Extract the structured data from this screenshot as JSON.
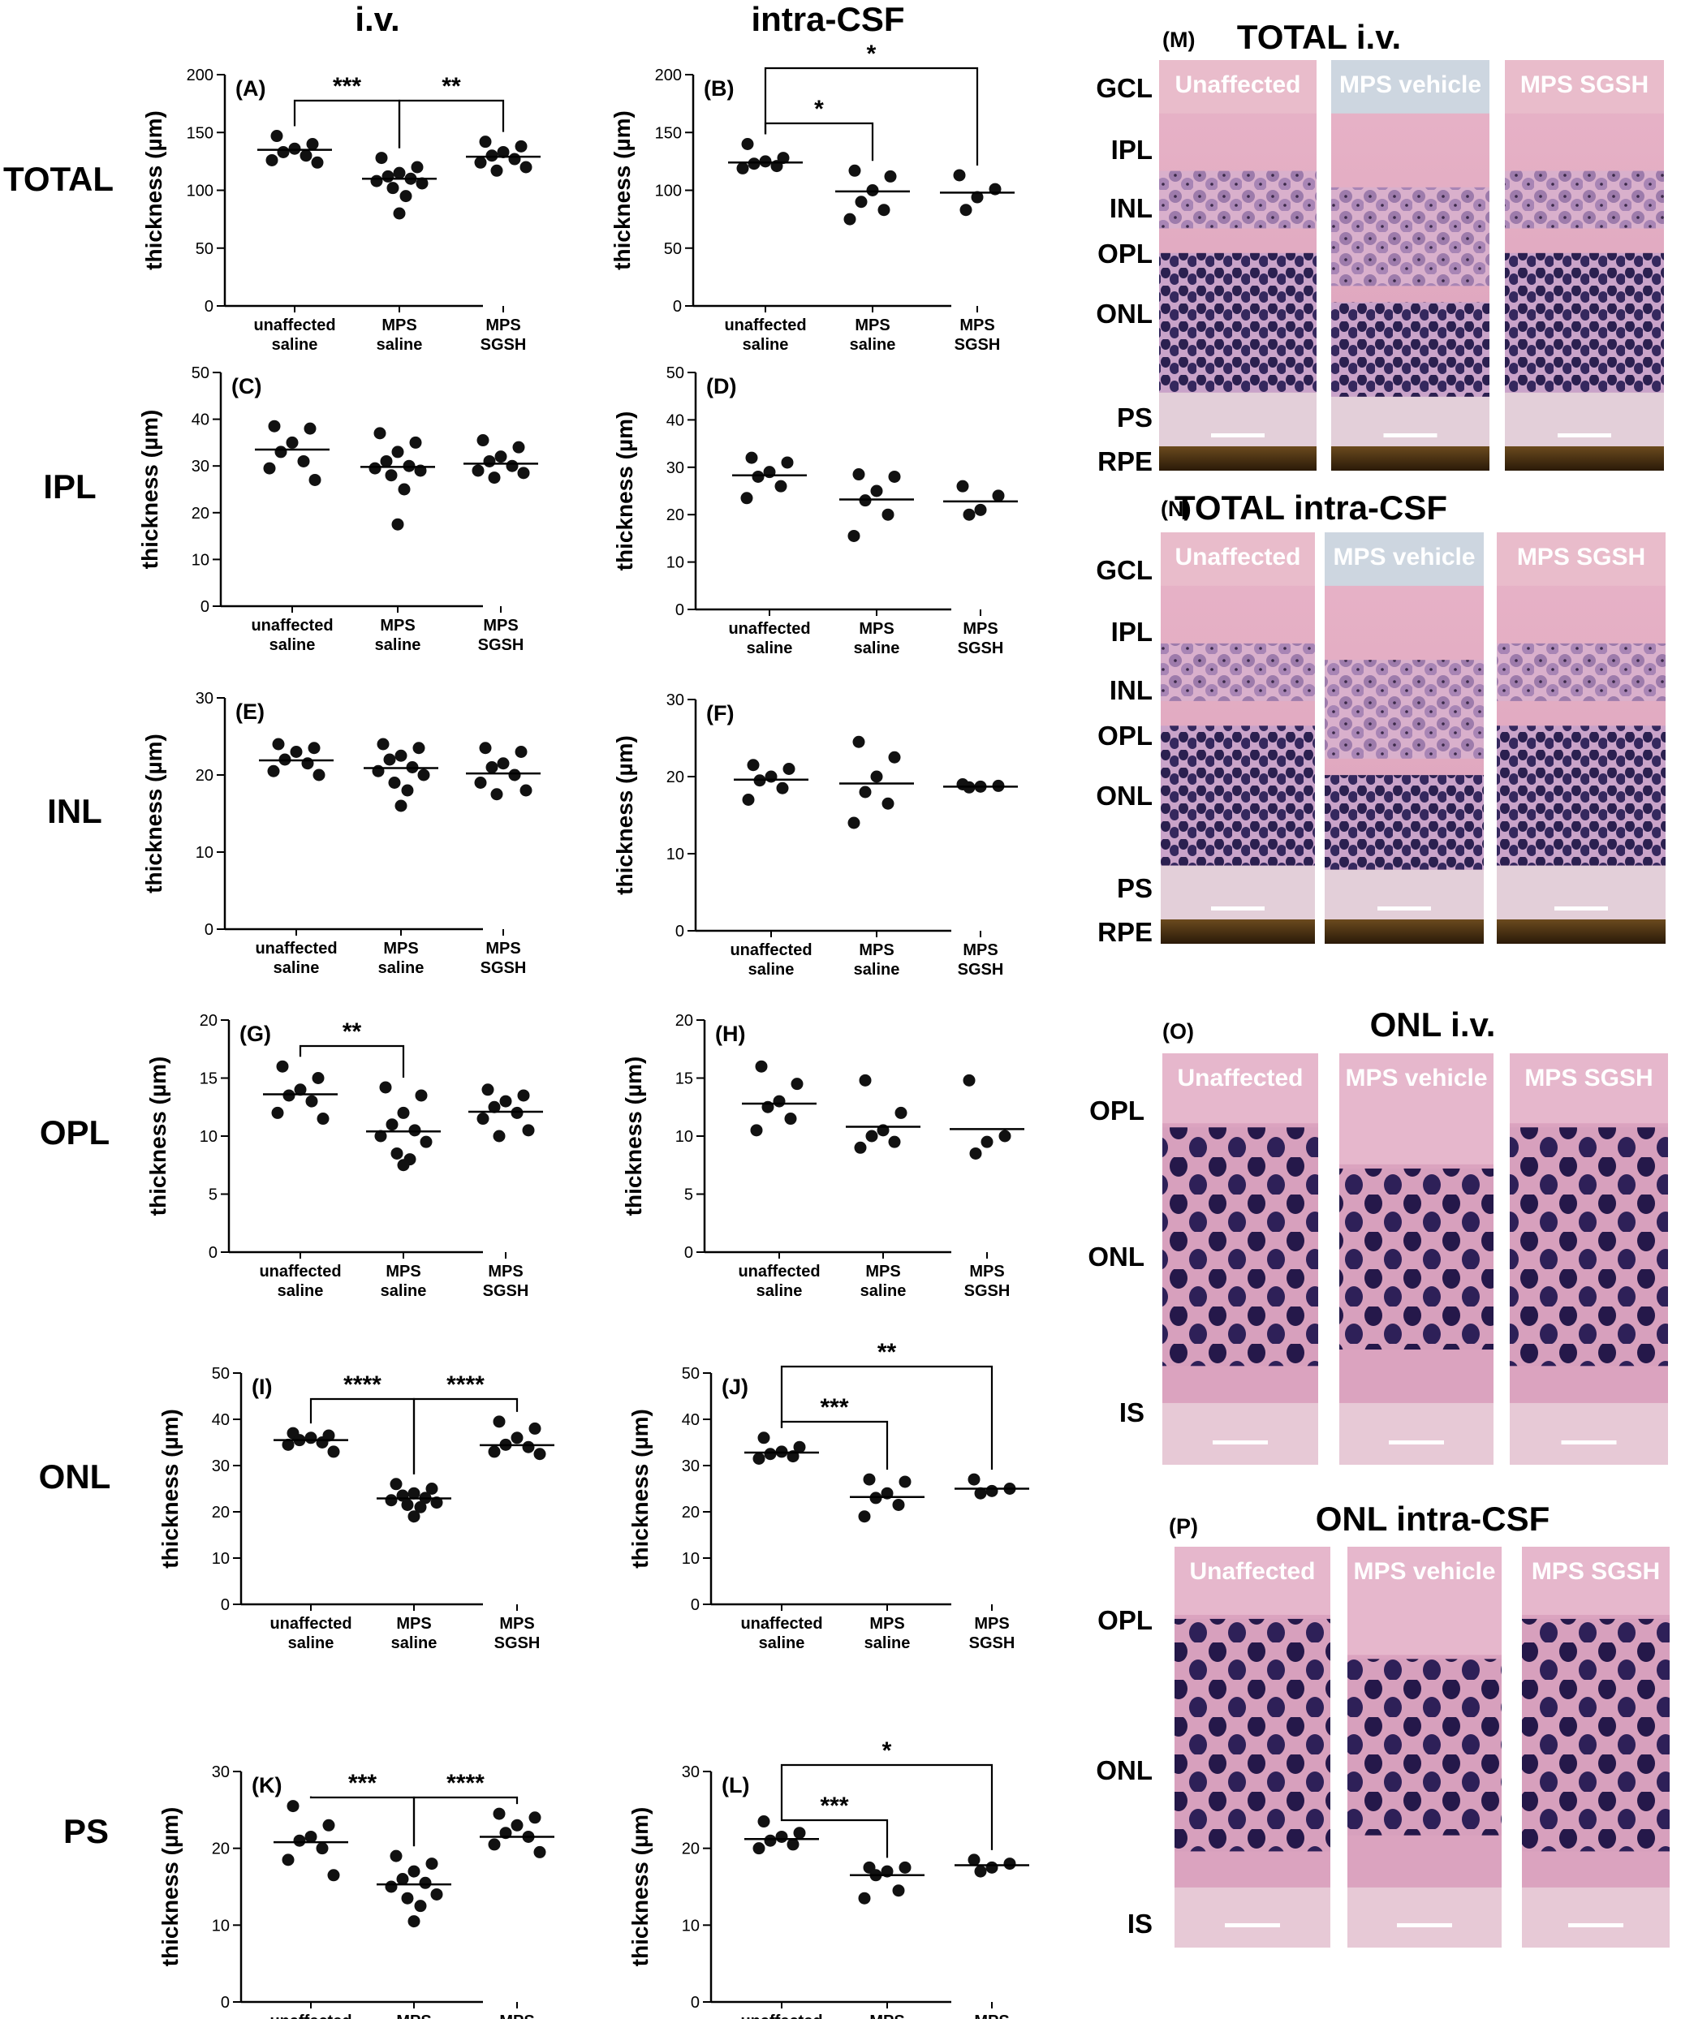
{
  "column_titles": [
    "i.v.",
    "intra-CSF"
  ],
  "row_labels": [
    "TOTAL",
    "IPL",
    "INL",
    "OPL",
    "ONL",
    "PS"
  ],
  "y_axis_label": "thickness (µm)",
  "category_lines": {
    "line1": [
      "unaffected",
      "MPS",
      "MPS"
    ],
    "line2": [
      "saline",
      "saline",
      "SGSH"
    ]
  },
  "colors": {
    "dots": "#111111",
    "axes": "#000000",
    "tissue_pink": "#e3a6bf",
    "nuclei": "#2a1f52"
  },
  "chart_data": [
    {
      "type": "scatter",
      "panel": "(A)",
      "route": "i.v.",
      "layer": "TOTAL",
      "ylim": [
        0,
        200
      ],
      "yticks": [
        0,
        50,
        100,
        150,
        200
      ],
      "categories": [
        "unaffected saline",
        "MPS saline",
        "MPS SGSH"
      ],
      "points": [
        [
          147,
          140,
          136,
          133,
          130,
          126,
          124
        ],
        [
          128,
          120,
          115,
          112,
          110,
          108,
          106,
          102,
          95,
          80
        ],
        [
          142,
          138,
          133,
          130,
          127,
          124,
          120,
          117
        ]
      ],
      "means": [
        135,
        110,
        129
      ],
      "significance": [
        {
          "from": 0,
          "to": 1,
          "label": "***"
        },
        {
          "from": 1,
          "to": 2,
          "label": "**"
        }
      ]
    },
    {
      "type": "scatter",
      "panel": "(B)",
      "route": "intra-CSF",
      "layer": "TOTAL",
      "ylim": [
        0,
        200
      ],
      "yticks": [
        0,
        50,
        100,
        150,
        200
      ],
      "categories": [
        "unaffected saline",
        "MPS saline",
        "MPS SGSH"
      ],
      "points": [
        [
          140,
          128,
          125,
          123,
          121,
          119
        ],
        [
          117,
          112,
          100,
          90,
          83,
          75
        ],
        [
          113,
          101,
          94,
          83
        ]
      ],
      "means": [
        124,
        99,
        98
      ],
      "significance": [
        {
          "from": 0,
          "to": 1,
          "label": "*"
        },
        {
          "from": 0,
          "to": 2,
          "label": "*"
        }
      ]
    },
    {
      "type": "scatter",
      "panel": "(C)",
      "route": "i.v.",
      "layer": "IPL",
      "ylim": [
        0,
        50
      ],
      "yticks": [
        0,
        10,
        20,
        30,
        40,
        50
      ],
      "categories": [
        "unaffected saline",
        "MPS saline",
        "MPS SGSH"
      ],
      "points": [
        [
          38.5,
          38,
          35,
          33,
          31,
          29.5,
          27
        ],
        [
          37,
          35,
          33,
          31,
          30,
          29.5,
          29,
          28,
          25,
          17.5
        ],
        [
          35.5,
          34,
          32,
          31,
          30,
          29,
          28.5,
          27.5
        ]
      ],
      "means": [
        33.5,
        29.8,
        30.5
      ],
      "significance": []
    },
    {
      "type": "scatter",
      "panel": "(D)",
      "route": "intra-CSF",
      "layer": "IPL",
      "ylim": [
        0,
        50
      ],
      "yticks": [
        0,
        10,
        20,
        30,
        40,
        50
      ],
      "categories": [
        "unaffected saline",
        "MPS saline",
        "MPS SGSH"
      ],
      "points": [
        [
          32,
          31,
          29,
          28,
          26,
          23.5
        ],
        [
          28.5,
          28,
          25,
          23,
          20,
          15.5
        ],
        [
          26,
          24,
          21,
          20
        ]
      ],
      "means": [
        28.3,
        23.2,
        22.8
      ],
      "significance": []
    },
    {
      "type": "scatter",
      "panel": "(E)",
      "route": "i.v.",
      "layer": "INL",
      "ylim": [
        0,
        30
      ],
      "yticks": [
        0,
        10,
        20,
        30
      ],
      "categories": [
        "unaffected saline",
        "MPS saline",
        "MPS SGSH"
      ],
      "points": [
        [
          24,
          23.5,
          23,
          22,
          21.5,
          20.5,
          20
        ],
        [
          24,
          23.5,
          22.5,
          22,
          21,
          20.5,
          20,
          19,
          18,
          16
        ],
        [
          23.5,
          23,
          21.5,
          21,
          20,
          19,
          18,
          17.5
        ]
      ],
      "means": [
        21.9,
        20.9,
        20.2
      ],
      "significance": []
    },
    {
      "type": "scatter",
      "panel": "(F)",
      "route": "intra-CSF",
      "layer": "INL",
      "ylim": [
        0,
        30
      ],
      "yticks": [
        0,
        10,
        20,
        30
      ],
      "categories": [
        "unaffected saline",
        "MPS saline",
        "MPS SGSH"
      ],
      "points": [
        [
          21.5,
          21,
          20,
          19.5,
          18.5,
          17
        ],
        [
          24.5,
          22.5,
          20,
          18,
          16.5,
          14
        ],
        [
          19,
          18.8,
          18.7,
          18.6
        ]
      ],
      "means": [
        19.6,
        19.1,
        18.7
      ],
      "significance": []
    },
    {
      "type": "scatter",
      "panel": "(G)",
      "route": "i.v.",
      "layer": "OPL",
      "ylim": [
        0,
        20
      ],
      "yticks": [
        0,
        5,
        10,
        15,
        20
      ],
      "categories": [
        "unaffected saline",
        "MPS saline",
        "MPS SGSH"
      ],
      "points": [
        [
          16,
          15,
          14,
          13.5,
          13,
          12,
          11.5
        ],
        [
          14.2,
          13.5,
          12,
          11,
          10.5,
          10,
          9.5,
          8.5,
          8,
          7.5
        ],
        [
          14,
          13.5,
          13,
          12.5,
          12,
          11.5,
          10.5,
          10
        ]
      ],
      "means": [
        13.6,
        10.4,
        12.1
      ],
      "significance": [
        {
          "from": 0,
          "to": 1,
          "label": "**"
        }
      ]
    },
    {
      "type": "scatter",
      "panel": "(H)",
      "route": "intra-CSF",
      "layer": "OPL",
      "ylim": [
        0,
        20
      ],
      "yticks": [
        0,
        5,
        10,
        15,
        20
      ],
      "categories": [
        "unaffected saline",
        "MPS saline",
        "MPS SGSH"
      ],
      "points": [
        [
          16,
          14.5,
          13,
          12.5,
          11.5,
          10.5
        ],
        [
          14.8,
          12,
          10.5,
          10,
          9.5,
          9
        ],
        [
          14.8,
          10,
          9.5,
          8.5
        ]
      ],
      "means": [
        12.8,
        10.8,
        10.6
      ],
      "significance": []
    },
    {
      "type": "scatter",
      "panel": "(I)",
      "route": "i.v.",
      "layer": "ONL",
      "ylim": [
        0,
        50
      ],
      "yticks": [
        0,
        10,
        20,
        30,
        40,
        50
      ],
      "categories": [
        "unaffected saline",
        "MPS saline",
        "MPS SGSH"
      ],
      "points": [
        [
          37,
          36.5,
          36,
          35.5,
          35,
          34.5,
          33
        ],
        [
          26,
          25,
          24,
          23.5,
          23,
          22.5,
          22,
          21.5,
          21,
          19
        ],
        [
          39.5,
          38,
          36,
          34.5,
          34,
          33,
          32.5
        ]
      ],
      "means": [
        35.5,
        22.9,
        34.4
      ],
      "significance": [
        {
          "from": 0,
          "to": 1,
          "label": "****"
        },
        {
          "from": 1,
          "to": 2,
          "label": "****"
        }
      ]
    },
    {
      "type": "scatter",
      "panel": "(J)",
      "route": "intra-CSF",
      "layer": "ONL",
      "ylim": [
        0,
        50
      ],
      "yticks": [
        0,
        10,
        20,
        30,
        40,
        50
      ],
      "categories": [
        "unaffected saline",
        "MPS saline",
        "MPS SGSH"
      ],
      "points": [
        [
          36,
          34,
          33,
          32.5,
          32,
          31.5
        ],
        [
          27,
          26.5,
          24,
          23,
          21.5,
          19
        ],
        [
          27,
          25,
          24.5,
          24
        ]
      ],
      "means": [
        32.8,
        23.2,
        25.0
      ],
      "significance": [
        {
          "from": 0,
          "to": 1,
          "label": "***"
        },
        {
          "from": 0,
          "to": 2,
          "label": "**"
        }
      ]
    },
    {
      "type": "scatter",
      "panel": "(K)",
      "route": "i.v.",
      "layer": "PS",
      "ylim": [
        0,
        30
      ],
      "yticks": [
        0,
        10,
        20,
        30
      ],
      "categories": [
        "unaffected saline",
        "MPS saline",
        "MPS SGSH"
      ],
      "points": [
        [
          25.5,
          23,
          21.5,
          21,
          20,
          18.5,
          16.5
        ],
        [
          19,
          18,
          17,
          16,
          15.5,
          15,
          14,
          13.5,
          12.5,
          10.5
        ],
        [
          24.5,
          24,
          23,
          22,
          21.5,
          20.5,
          19.5
        ]
      ],
      "means": [
        20.8,
        15.3,
        21.5
      ],
      "significance": [
        {
          "from": 0,
          "to": 1,
          "label": "***"
        },
        {
          "from": 1,
          "to": 2,
          "label": "****"
        }
      ]
    },
    {
      "type": "scatter",
      "panel": "(L)",
      "route": "intra-CSF",
      "layer": "PS",
      "ylim": [
        0,
        30
      ],
      "yticks": [
        0,
        10,
        20,
        30
      ],
      "categories": [
        "unaffected saline",
        "MPS saline",
        "MPS SGSH"
      ],
      "points": [
        [
          23.5,
          22,
          21.5,
          21,
          20.5,
          20
        ],
        [
          17.5,
          17.5,
          17,
          16.5,
          14.5,
          13.5
        ],
        [
          18.5,
          18,
          17.5,
          17
        ]
      ],
      "means": [
        21.2,
        16.5,
        17.8
      ],
      "significance": [
        {
          "from": 0,
          "to": 1,
          "label": "***"
        },
        {
          "from": 0,
          "to": 2,
          "label": "*"
        }
      ]
    }
  ],
  "histology": [
    {
      "panel": "(M)",
      "title": "TOTAL i.v.",
      "layers": [
        "GCL",
        "IPL",
        "INL",
        "OPL",
        "ONL",
        "PS",
        "RPE"
      ],
      "groups": [
        "Unaffected",
        "MPS vehicle",
        "MPS SGSH"
      ]
    },
    {
      "panel": "(N)",
      "title": "TOTAL intra-CSF",
      "layers": [
        "GCL",
        "IPL",
        "INL",
        "OPL",
        "ONL",
        "PS",
        "RPE"
      ],
      "groups": [
        "Unaffected",
        "MPS vehicle",
        "MPS SGSH"
      ]
    },
    {
      "panel": "(O)",
      "title": "ONL i.v.",
      "layers": [
        "OPL",
        "ONL",
        "IS"
      ],
      "groups": [
        "Unaffected",
        "MPS vehicle",
        "MPS SGSH"
      ]
    },
    {
      "panel": "(P)",
      "title": "ONL intra-CSF",
      "layers": [
        "OPL",
        "ONL",
        "IS"
      ],
      "groups": [
        "Unaffected",
        "MPS vehicle",
        "MPS SGSH"
      ]
    }
  ]
}
